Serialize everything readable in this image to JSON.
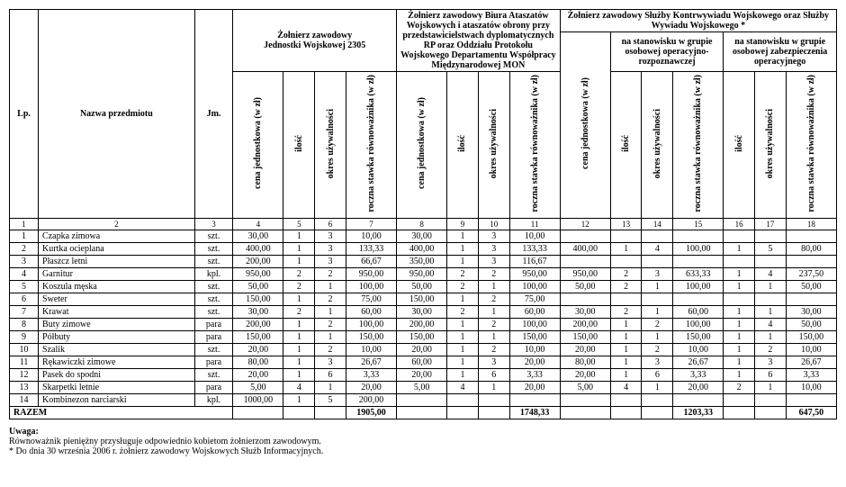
{
  "headers": {
    "lp": "Lp.",
    "nazwa": "Nazwa przedmiotu",
    "jm": "Jm.",
    "group1": "Żołnierz zawodowy\nJednostki Wojskowej 2305",
    "group2": "Żołnierz zawodowy Biura Ataszatów Wojskowych i ataszatów obrony przy przedstawicielstwach dyplomatycznych RP oraz Oddziału Protokołu Wojskowego Departamentu Współpracy Międzynarodowej MON",
    "group3": "Żołnierz zawodowy Służby Kontrwywiadu Wojskowego oraz Służby Wywiadu Wojskowego *",
    "sub3a": "na stanowisku w grupie osobowej operacyjno-rozpoznawczej",
    "sub3b": "na stanowisku w grupie osobowej zabezpieczenia operacyjnego",
    "cena": "cena jednostkowa (w zł)",
    "ilosc": "ilość",
    "okres": "okres używalności",
    "stawka": "roczna stawka równoważnika (w zł)",
    "razem": "RAZEM"
  },
  "colnums": [
    "1",
    "2",
    "3",
    "4",
    "5",
    "6",
    "7",
    "8",
    "9",
    "10",
    "11",
    "12",
    "13",
    "14",
    "15",
    "16",
    "17",
    "18"
  ],
  "rows": [
    {
      "lp": "1",
      "name": "Czapka zimowa",
      "jm": "szt.",
      "g1": [
        "30,00",
        "1",
        "3",
        "10,00"
      ],
      "g2": [
        "30,00",
        "1",
        "3",
        "10,00"
      ],
      "g3c": "",
      "g3a": [
        "",
        "",
        ""
      ],
      "g3b": [
        "",
        "",
        ""
      ]
    },
    {
      "lp": "2",
      "name": "Kurtka ocieplana",
      "jm": "szt.",
      "g1": [
        "400,00",
        "1",
        "3",
        "133,33"
      ],
      "g2": [
        "400,00",
        "1",
        "3",
        "133,33"
      ],
      "g3c": "400,00",
      "g3a": [
        "1",
        "4",
        "100,00"
      ],
      "g3b": [
        "1",
        "5",
        "80,00"
      ]
    },
    {
      "lp": "3",
      "name": "Płaszcz letni",
      "jm": "szt.",
      "g1": [
        "200,00",
        "1",
        "3",
        "66,67"
      ],
      "g2": [
        "350,00",
        "1",
        "3",
        "116,67"
      ],
      "g3c": "",
      "g3a": [
        "",
        "",
        ""
      ],
      "g3b": [
        "",
        "",
        ""
      ]
    },
    {
      "lp": "4",
      "name": "Garnitur",
      "jm": "kpl.",
      "g1": [
        "950,00",
        "2",
        "2",
        "950,00"
      ],
      "g2": [
        "950,00",
        "2",
        "2",
        "950,00"
      ],
      "g3c": "950,00",
      "g3a": [
        "2",
        "3",
        "633,33"
      ],
      "g3b": [
        "1",
        "4",
        "237,50"
      ]
    },
    {
      "lp": "5",
      "name": "Koszula męska",
      "jm": "szt.",
      "g1": [
        "50,00",
        "2",
        "1",
        "100,00"
      ],
      "g2": [
        "50,00",
        "2",
        "1",
        "100,00"
      ],
      "g3c": "50,00",
      "g3a": [
        "2",
        "1",
        "100,00"
      ],
      "g3b": [
        "1",
        "1",
        "50,00"
      ]
    },
    {
      "lp": "6",
      "name": "Sweter",
      "jm": "szt.",
      "g1": [
        "150,00",
        "1",
        "2",
        "75,00"
      ],
      "g2": [
        "150,00",
        "1",
        "2",
        "75,00"
      ],
      "g3c": "",
      "g3a": [
        "",
        "",
        ""
      ],
      "g3b": [
        "",
        "",
        ""
      ]
    },
    {
      "lp": "7",
      "name": "Krawat",
      "jm": "szt.",
      "g1": [
        "30,00",
        "2",
        "1",
        "60,00"
      ],
      "g2": [
        "30,00",
        "2",
        "1",
        "60,00"
      ],
      "g3c": "30,00",
      "g3a": [
        "2",
        "1",
        "60,00"
      ],
      "g3b": [
        "1",
        "1",
        "30,00"
      ]
    },
    {
      "lp": "8",
      "name": "Buty zimowe",
      "jm": "para",
      "g1": [
        "200,00",
        "1",
        "2",
        "100,00"
      ],
      "g2": [
        "200,00",
        "1",
        "2",
        "100,00"
      ],
      "g3c": "200,00",
      "g3a": [
        "1",
        "2",
        "100,00"
      ],
      "g3b": [
        "1",
        "4",
        "50,00"
      ]
    },
    {
      "lp": "9",
      "name": "Półbuty",
      "jm": "para",
      "g1": [
        "150,00",
        "1",
        "1",
        "150,00"
      ],
      "g2": [
        "150,00",
        "1",
        "1",
        "150,00"
      ],
      "g3c": "150,00",
      "g3a": [
        "1",
        "1",
        "150,00"
      ],
      "g3b": [
        "1",
        "1",
        "150,00"
      ]
    },
    {
      "lp": "10",
      "name": "Szalik",
      "jm": "szt.",
      "g1": [
        "20,00",
        "1",
        "2",
        "10,00"
      ],
      "g2": [
        "20,00",
        "1",
        "2",
        "10,00"
      ],
      "g3c": "20,00",
      "g3a": [
        "1",
        "2",
        "10,00"
      ],
      "g3b": [
        "1",
        "2",
        "10,00"
      ]
    },
    {
      "lp": "11",
      "name": "Rękawiczki zimowe",
      "jm": "para",
      "g1": [
        "80,00",
        "1",
        "3",
        "26,67"
      ],
      "g2": [
        "60,00",
        "1",
        "3",
        "20,00"
      ],
      "g3c": "80,00",
      "g3a": [
        "1",
        "3",
        "26,67"
      ],
      "g3b": [
        "1",
        "3",
        "26,67"
      ]
    },
    {
      "lp": "12",
      "name": "Pasek do spodni",
      "jm": "szt.",
      "g1": [
        "20,00",
        "1",
        "6",
        "3,33"
      ],
      "g2": [
        "20,00",
        "1",
        "6",
        "3,33"
      ],
      "g3c": "20,00",
      "g3a": [
        "1",
        "6",
        "3,33"
      ],
      "g3b": [
        "1",
        "6",
        "3,33"
      ]
    },
    {
      "lp": "13",
      "name": "Skarpetki letnie",
      "jm": "para",
      "g1": [
        "5,00",
        "4",
        "1",
        "20,00"
      ],
      "g2": [
        "5,00",
        "4",
        "1",
        "20,00"
      ],
      "g3c": "5,00",
      "g3a": [
        "4",
        "1",
        "20,00"
      ],
      "g3b": [
        "2",
        "1",
        "10,00"
      ]
    },
    {
      "lp": "14",
      "name": "Kombinezon narciarski",
      "jm": "kpl.",
      "g1": [
        "1000,00",
        "1",
        "5",
        "200,00"
      ],
      "g2": [
        "",
        "",
        "",
        ""
      ],
      "g3c": "",
      "g3a": [
        "",
        "",
        ""
      ],
      "g3b": [
        "",
        "",
        ""
      ]
    }
  ],
  "totals": {
    "g1": "1905,00",
    "g2": "1748,33",
    "g3a": "1203,33",
    "g3b": "647,50"
  },
  "notes": {
    "title": "Uwaga:",
    "line1": "Równoważnik pieniężny przysługuje odpowiednio kobietom żołnierzom zawodowym.",
    "line2": "* Do dnia 30 września 2006 r. żołnierz zawodowy Wojskowych Służb Informacyjnych."
  }
}
